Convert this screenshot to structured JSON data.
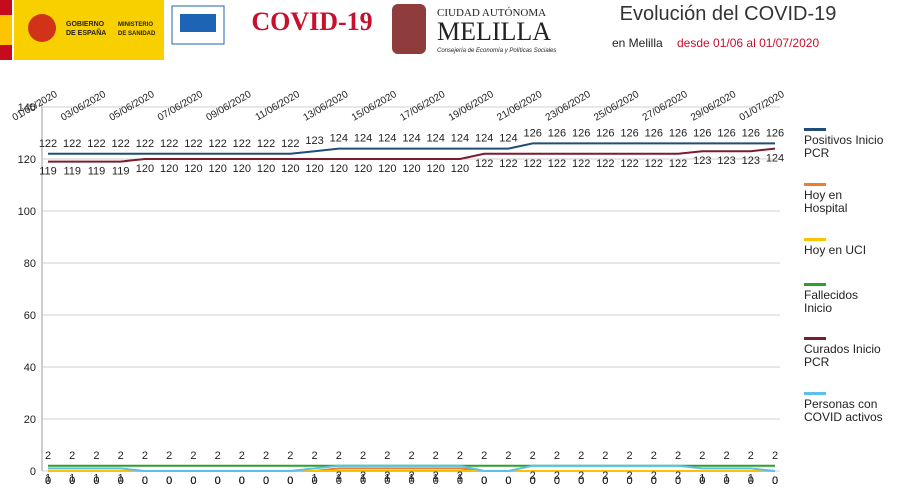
{
  "header": {
    "gov_line1": "GOBIERNO",
    "gov_line2": "DE ESPAÑA",
    "ministry_line1": "MINISTERIO",
    "ministry_line2": "DE SANIDAD",
    "covid_logo": "COVID-19",
    "city_line1": "CIUDAD AUTÓNOMA",
    "city_line2": "MELILLA",
    "city_line3": "Consejería de Economía y Políticas Sociales"
  },
  "chart_data": {
    "type": "line",
    "title": "Evolución del COVID-19",
    "subtitle": "en Melilla",
    "subtitle_range": "desde 01/06 al 01/07/2020",
    "categories": [
      "01/06/2020",
      null,
      "03/06/2020",
      null,
      "05/06/2020",
      null,
      "07/06/2020",
      null,
      "09/06/2020",
      null,
      "11/06/2020",
      null,
      "13/06/2020",
      null,
      "15/06/2020",
      null,
      "17/06/2020",
      null,
      "19/06/2020",
      null,
      "21/06/2020",
      null,
      "23/06/2020",
      null,
      "25/06/2020",
      null,
      "27/06/2020",
      null,
      "29/06/2020",
      null,
      "01/07/2020"
    ],
    "ylim": [
      0,
      140
    ],
    "yticks": [
      0,
      20,
      40,
      60,
      80,
      100,
      120,
      140
    ],
    "grid": true,
    "series": [
      {
        "name": "Positivos Inicio PCR",
        "color": "#1f4e79",
        "values": [
          122,
          122,
          122,
          122,
          122,
          122,
          122,
          122,
          122,
          122,
          122,
          123,
          124,
          124,
          124,
          124,
          124,
          124,
          124,
          124,
          126,
          126,
          126,
          126,
          126,
          126,
          126,
          126,
          126,
          126,
          126
        ]
      },
      {
        "name": "Hoy en Hospital",
        "color": "#ed7d31",
        "values": [
          0,
          0,
          0,
          0,
          0,
          0,
          0,
          0,
          0,
          0,
          0,
          0,
          1,
          1,
          1,
          1,
          1,
          1,
          0,
          0,
          0,
          0,
          0,
          0,
          0,
          0,
          0,
          0,
          0,
          0,
          0
        ]
      },
      {
        "name": "Hoy en UCI",
        "color": "#ffc000",
        "values": [
          0,
          0,
          0,
          0,
          0,
          0,
          0,
          0,
          0,
          0,
          0,
          0,
          0,
          0,
          0,
          0,
          0,
          0,
          0,
          0,
          0,
          0,
          0,
          0,
          0,
          0,
          0,
          0,
          0,
          0,
          0
        ]
      },
      {
        "name": "Fallecidos Inicio",
        "color": "#2ca02c",
        "values": [
          2,
          2,
          2,
          2,
          2,
          2,
          2,
          2,
          2,
          2,
          2,
          2,
          2,
          2,
          2,
          2,
          2,
          2,
          2,
          2,
          2,
          2,
          2,
          2,
          2,
          2,
          2,
          2,
          2,
          2,
          2
        ]
      },
      {
        "name": "Curados Inicio PCR",
        "color": "#7b1c2e",
        "values": [
          119,
          119,
          119,
          119,
          120,
          120,
          120,
          120,
          120,
          120,
          120,
          120,
          120,
          120,
          120,
          120,
          120,
          120,
          122,
          122,
          122,
          122,
          122,
          122,
          122,
          122,
          122,
          123,
          123,
          123,
          124
        ]
      },
      {
        "name": "Personas con COVID activos",
        "color": "#5bc0eb",
        "values": [
          1,
          1,
          1,
          1,
          0,
          0,
          0,
          0,
          0,
          0,
          0,
          1,
          2,
          2,
          2,
          2,
          2,
          2,
          0,
          0,
          2,
          2,
          2,
          2,
          2,
          2,
          2,
          1,
          1,
          1,
          0
        ]
      }
    ]
  }
}
